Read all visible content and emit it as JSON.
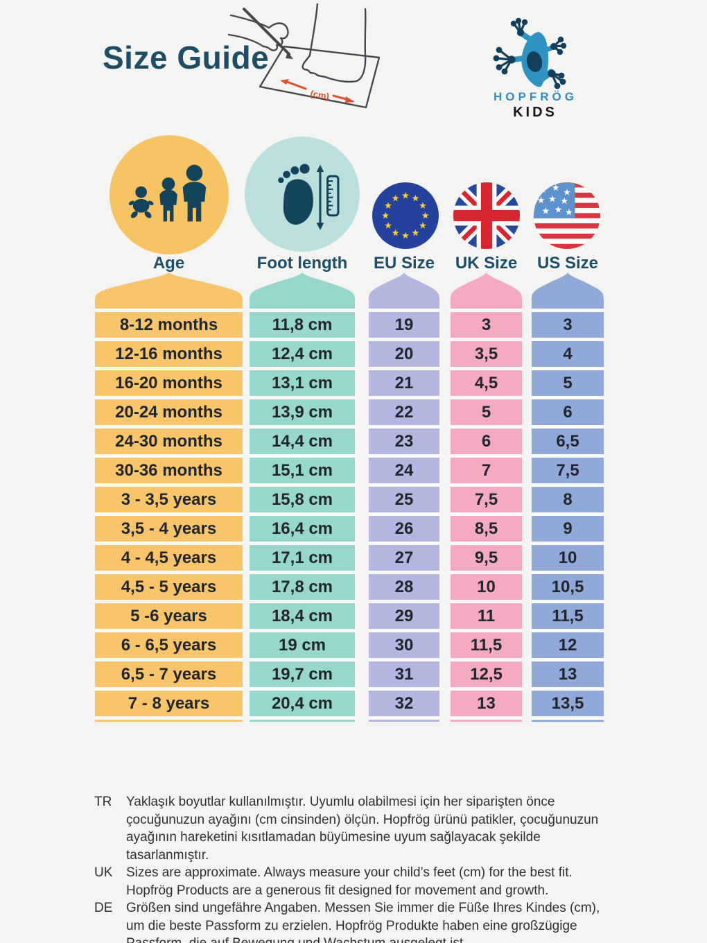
{
  "page": {
    "title": "Size Guide"
  },
  "brand": {
    "line1": "HOPFRÖG",
    "line2": "KIDS"
  },
  "illustration": {
    "cm_label": "(cm)"
  },
  "colors": {
    "background": "#f4f4f2",
    "separator": "#fafaf8",
    "title": "#1d4e66",
    "icon_dark": "#14435c",
    "cell_text": "#20262c",
    "note_text": "#2f2f2f",
    "age_circle": "#f7c464",
    "foot_circle": "#badfdd",
    "eu_blue": "#24419d",
    "star_yellow": "#f7cf3c",
    "uk_blue": "#25489f",
    "uk_red": "#d8252f",
    "us_red": "#d8353f",
    "us_canton": "#5e92cc",
    "frog_blue": "#2e92c3",
    "frog_dark": "#123f5b",
    "brand_blue": "#2d8fc0",
    "accent_orange": "#e0502e"
  },
  "chart_data": {
    "type": "table",
    "title": "Size Guide",
    "columns": [
      {
        "key": "age",
        "label": "Age",
        "icon": "family-icon",
        "color": "#f8c56a"
      },
      {
        "key": "foot",
        "label": "Foot length",
        "icon": "foot-ruler-icon",
        "color": "#98d7cb"
      },
      {
        "key": "eu",
        "label": "EU Size",
        "icon": "eu-flag-icon",
        "color": "#b5b6df"
      },
      {
        "key": "uk",
        "label": "UK Size",
        "icon": "uk-flag-icon",
        "color": "#f4aac1"
      },
      {
        "key": "us",
        "label": "US Size",
        "icon": "us-flag-icon",
        "color": "#90a9d9"
      }
    ],
    "rows": [
      {
        "age": "8-12 months",
        "foot": "11,8 cm",
        "eu": "19",
        "uk": "3",
        "us": "3"
      },
      {
        "age": "12-16 months",
        "foot": "12,4 cm",
        "eu": "20",
        "uk": "3,5",
        "us": "4"
      },
      {
        "age": "16-20 months",
        "foot": "13,1 cm",
        "eu": "21",
        "uk": "4,5",
        "us": "5"
      },
      {
        "age": "20-24 months",
        "foot": "13,9 cm",
        "eu": "22",
        "uk": "5",
        "us": "6"
      },
      {
        "age": "24-30 months",
        "foot": "14,4 cm",
        "eu": "23",
        "uk": "6",
        "us": "6,5"
      },
      {
        "age": "30-36 months",
        "foot": "15,1 cm",
        "eu": "24",
        "uk": "7",
        "us": "7,5"
      },
      {
        "age": "3 - 3,5 years",
        "foot": "15,8 cm",
        "eu": "25",
        "uk": "7,5",
        "us": "8"
      },
      {
        "age": "3,5 - 4 years",
        "foot": "16,4 cm",
        "eu": "26",
        "uk": "8,5",
        "us": "9"
      },
      {
        "age": "4 - 4,5 years",
        "foot": "17,1 cm",
        "eu": "27",
        "uk": "9,5",
        "us": "10"
      },
      {
        "age": "4,5 - 5 years",
        "foot": "17,8 cm",
        "eu": "28",
        "uk": "10",
        "us": "10,5"
      },
      {
        "age": "5 -6 years",
        "foot": "18,4 cm",
        "eu": "29",
        "uk": "11",
        "us": "11,5"
      },
      {
        "age": "6 - 6,5 years",
        "foot": "19 cm",
        "eu": "30",
        "uk": "11,5",
        "us": "12"
      },
      {
        "age": "6,5 - 7 years",
        "foot": "19,7 cm",
        "eu": "31",
        "uk": "12,5",
        "us": "13"
      },
      {
        "age": "7 - 8 years",
        "foot": "20,4 cm",
        "eu": "32",
        "uk": "13",
        "us": "13,5"
      }
    ]
  },
  "notes": [
    {
      "lang": "TR",
      "text": "Yaklaşık boyutlar kullanılmıştır. Uyumlu olabilmesi için her siparişten önce çocuğunuzun ayağını (cm cinsinden) ölçün. Hopfrög ürünü patikler, çocuğunuzun ayağının hareketini kısıtlamadan büyümesine uyum sağlayacak şekilde tasarlanmıştır."
    },
    {
      "lang": "UK",
      "text": "Sizes are approximate. Always measure your child’s feet (cm) for the best fit. Hopfrög Products are a generous fit designed for movement and growth."
    },
    {
      "lang": "DE",
      "text": "Größen sind ungefähre Angaben. Messen Sie immer die Füße Ihres Kindes (cm), um die beste Passform zu erzielen. Hopfrög Produkte haben eine großzügige Passform, die auf Bewegung und Wachstum ausgelegt ist."
    }
  ]
}
